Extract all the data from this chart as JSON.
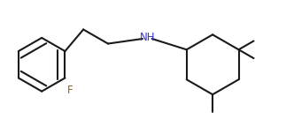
{
  "bg_color": "#ffffff",
  "line_color": "#1a1a1a",
  "nh_color": "#3333cc",
  "f_color": "#8B6914",
  "line_width": 1.5,
  "font_size": 8.5
}
